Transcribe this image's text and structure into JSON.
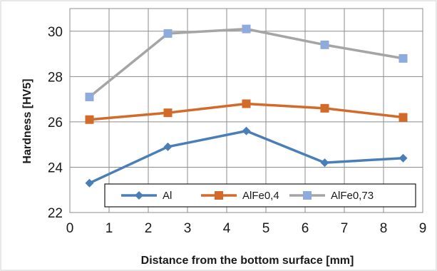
{
  "chart_data": {
    "type": "line",
    "title": "",
    "xlabel": "Distance from the bottom surface [mm]",
    "ylabel": "Hardness [HV5]",
    "xlim": [
      0,
      9
    ],
    "ylim": [
      22,
      31
    ],
    "xticks": [
      0,
      1,
      2,
      3,
      4,
      5,
      6,
      7,
      8,
      9
    ],
    "yticks": [
      22,
      24,
      26,
      28,
      30
    ],
    "grid": true,
    "legend_position": "bottom-inside",
    "series": [
      {
        "name": "Al",
        "color": "#4a7eb7",
        "marker": "diamond",
        "x": [
          0.5,
          2.5,
          4.5,
          6.5,
          8.5
        ],
        "y": [
          23.3,
          24.9,
          25.6,
          24.2,
          24.4
        ]
      },
      {
        "name": "AlFe0,4",
        "color": "#d26a2a",
        "marker": "square",
        "x": [
          0.5,
          2.5,
          4.5,
          6.5,
          8.5
        ],
        "y": [
          26.1,
          26.4,
          26.8,
          26.6,
          26.2
        ]
      },
      {
        "name": "AlFe0,73",
        "color": "#a5a5a5",
        "marker_color": "#8faadc",
        "marker": "square",
        "x": [
          0.5,
          2.5,
          4.5,
          6.5,
          8.5
        ],
        "y": [
          27.1,
          29.9,
          30.1,
          29.4,
          28.8
        ]
      }
    ]
  }
}
